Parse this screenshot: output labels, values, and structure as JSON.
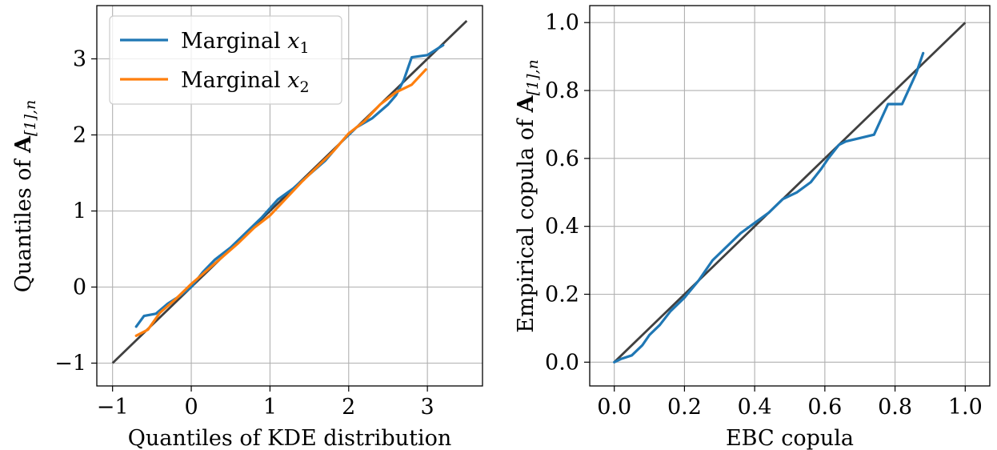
{
  "chart_data": [
    {
      "type": "line",
      "xlabel_main": "Quantiles of KDE distribution",
      "ylabel_main": "Quantiles of ",
      "ylabel_sym": "A",
      "ylabel_sub": "[1],n",
      "xlim": [
        -1.2,
        3.7
      ],
      "ylim": [
        -1.3,
        3.7
      ],
      "xticks": [
        -1,
        0,
        1,
        2,
        3
      ],
      "yticks": [
        -1,
        0,
        1,
        2,
        3
      ],
      "grid": true,
      "legend_position": "top-left",
      "reference_line": {
        "x": [
          -1,
          3.5
        ],
        "y": [
          -1,
          3.5
        ],
        "color": "#404040"
      },
      "series": [
        {
          "name_main": "Marginal ",
          "name_var": "x",
          "name_sub": "1",
          "color": "#1f77b4",
          "x": [
            -0.7,
            -0.6,
            -0.45,
            -0.3,
            -0.15,
            0.0,
            0.15,
            0.3,
            0.5,
            0.7,
            0.9,
            1.1,
            1.3,
            1.5,
            1.7,
            1.9,
            2.1,
            2.3,
            2.5,
            2.6,
            2.7,
            2.8,
            3.0,
            3.2
          ],
          "y": [
            -0.52,
            -0.38,
            -0.35,
            -0.22,
            -0.12,
            0.0,
            0.2,
            0.36,
            0.52,
            0.72,
            0.92,
            1.15,
            1.3,
            1.48,
            1.66,
            1.9,
            2.1,
            2.22,
            2.4,
            2.52,
            2.72,
            3.02,
            3.05,
            3.18
          ]
        },
        {
          "name_main": "Marginal ",
          "name_var": "x",
          "name_sub": "2",
          "color": "#ff7f0e",
          "x": [
            -0.7,
            -0.55,
            -0.4,
            -0.2,
            0.0,
            0.2,
            0.4,
            0.6,
            0.8,
            1.0,
            1.2,
            1.4,
            1.6,
            1.8,
            2.0,
            2.2,
            2.4,
            2.6,
            2.8,
            2.98
          ],
          "y": [
            -0.64,
            -0.56,
            -0.34,
            -0.16,
            0.04,
            0.22,
            0.4,
            0.58,
            0.78,
            0.94,
            1.16,
            1.38,
            1.58,
            1.78,
            2.02,
            2.18,
            2.4,
            2.56,
            2.66,
            2.86
          ]
        }
      ]
    },
    {
      "type": "line",
      "xlabel_main": "EBC copula",
      "ylabel_main": "Empirical copula of ",
      "ylabel_sym": "A",
      "ylabel_sub": "[1],n",
      "xlim": [
        -0.07,
        1.07
      ],
      "ylim": [
        -0.07,
        1.05
      ],
      "xticks": [
        0.0,
        0.2,
        0.4,
        0.6,
        0.8,
        1.0
      ],
      "yticks": [
        0.0,
        0.2,
        0.4,
        0.6,
        0.8,
        1.0
      ],
      "grid": true,
      "reference_line": {
        "x": [
          0,
          1
        ],
        "y": [
          0,
          1
        ],
        "color": "#404040"
      },
      "series": [
        {
          "color": "#1f77b4",
          "x": [
            0.0,
            0.02,
            0.05,
            0.08,
            0.1,
            0.13,
            0.16,
            0.2,
            0.24,
            0.28,
            0.32,
            0.36,
            0.4,
            0.44,
            0.48,
            0.52,
            0.56,
            0.59,
            0.61,
            0.64,
            0.66,
            0.7,
            0.74,
            0.78,
            0.82,
            0.86,
            0.88
          ],
          "y": [
            0.0,
            0.01,
            0.02,
            0.05,
            0.08,
            0.11,
            0.15,
            0.19,
            0.24,
            0.3,
            0.34,
            0.38,
            0.41,
            0.44,
            0.48,
            0.5,
            0.53,
            0.57,
            0.6,
            0.64,
            0.65,
            0.66,
            0.67,
            0.76,
            0.76,
            0.85,
            0.91
          ]
        }
      ]
    }
  ]
}
